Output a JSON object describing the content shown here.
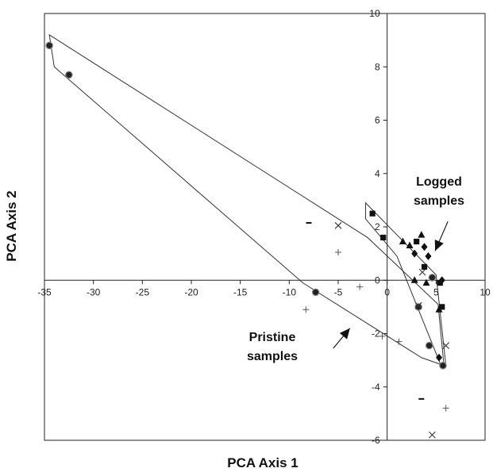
{
  "chart_data": {
    "type": "scatter",
    "title": "",
    "xlabel": "PCA Axis 1",
    "ylabel": "PCA Axis 2",
    "xlim": [
      -35,
      10
    ],
    "ylim": [
      -6,
      10
    ],
    "xticks": [
      -35,
      -30,
      -25,
      -20,
      -15,
      -10,
      -5,
      0,
      5,
      10
    ],
    "yticks": [
      -6,
      -4,
      -2,
      0,
      2,
      4,
      6,
      8,
      10
    ],
    "grid": false,
    "legend": "none",
    "series": [
      {
        "marker": "circle",
        "points": [
          [
            -34.5,
            8.8
          ],
          [
            -32.5,
            7.7
          ],
          [
            -7.3,
            -0.45
          ],
          [
            3.2,
            -1.0
          ],
          [
            4.6,
            0.1
          ],
          [
            4.3,
            -2.45
          ],
          [
            5.7,
            -3.2
          ]
        ]
      },
      {
        "marker": "square",
        "points": [
          [
            -1.5,
            2.5
          ],
          [
            -0.4,
            1.6
          ],
          [
            3.0,
            1.45
          ],
          [
            3.8,
            0.5
          ],
          [
            5.4,
            -0.1
          ],
          [
            5.6,
            -1.0
          ]
        ]
      },
      {
        "marker": "triangle",
        "points": [
          [
            1.6,
            1.45
          ],
          [
            2.3,
            1.3
          ],
          [
            3.5,
            1.7
          ],
          [
            2.8,
            0.0
          ],
          [
            4.0,
            -0.1
          ],
          [
            5.3,
            -1.1
          ]
        ]
      },
      {
        "marker": "diamond",
        "points": [
          [
            2.8,
            1.0
          ],
          [
            3.8,
            1.25
          ],
          [
            4.2,
            0.9
          ],
          [
            5.6,
            0.0
          ],
          [
            5.3,
            -2.9
          ]
        ]
      },
      {
        "marker": "dash",
        "points": [
          [
            -8.0,
            2.15
          ],
          [
            3.5,
            -4.45
          ]
        ]
      },
      {
        "marker": "x",
        "points": [
          [
            -5.0,
            2.05
          ],
          [
            3.6,
            0.3
          ],
          [
            3.2,
            -0.95
          ],
          [
            6.0,
            -2.45
          ],
          [
            4.6,
            -5.8
          ]
        ]
      },
      {
        "marker": "plus",
        "points": [
          [
            -5.0,
            1.05
          ],
          [
            -8.3,
            -1.1
          ],
          [
            -2.8,
            -0.25
          ],
          [
            -0.5,
            -2.1
          ],
          [
            1.2,
            -2.3
          ],
          [
            6.0,
            -4.8
          ]
        ]
      }
    ],
    "polygons": [
      {
        "name": "Pristine samples",
        "points": [
          [
            -34.5,
            9.2
          ],
          [
            -2.0,
            1.6
          ],
          [
            5.2,
            -0.9
          ],
          [
            5.8,
            -3.2
          ],
          [
            3.5,
            -2.9
          ],
          [
            -8.6,
            -0.1
          ],
          [
            -34.0,
            8.0
          ]
        ]
      },
      {
        "name": "Logged samples",
        "points": [
          [
            -2.2,
            2.9
          ],
          [
            5.0,
            0.2
          ],
          [
            6.0,
            -3.2
          ],
          [
            5.5,
            -3.2
          ],
          [
            1.0,
            0.9
          ],
          [
            -2.2,
            2.3
          ]
        ]
      }
    ],
    "annotations": [
      {
        "text": [
          "Logged",
          "samples"
        ],
        "arrow_from": [
          6.2,
          2.2
        ],
        "arrow_to": [
          4.9,
          1.1
        ]
      },
      {
        "text": [
          "Pristine",
          "samples"
        ],
        "arrow_from": [
          -5.5,
          -2.55
        ],
        "arrow_to": [
          -3.8,
          -1.8
        ]
      }
    ]
  }
}
